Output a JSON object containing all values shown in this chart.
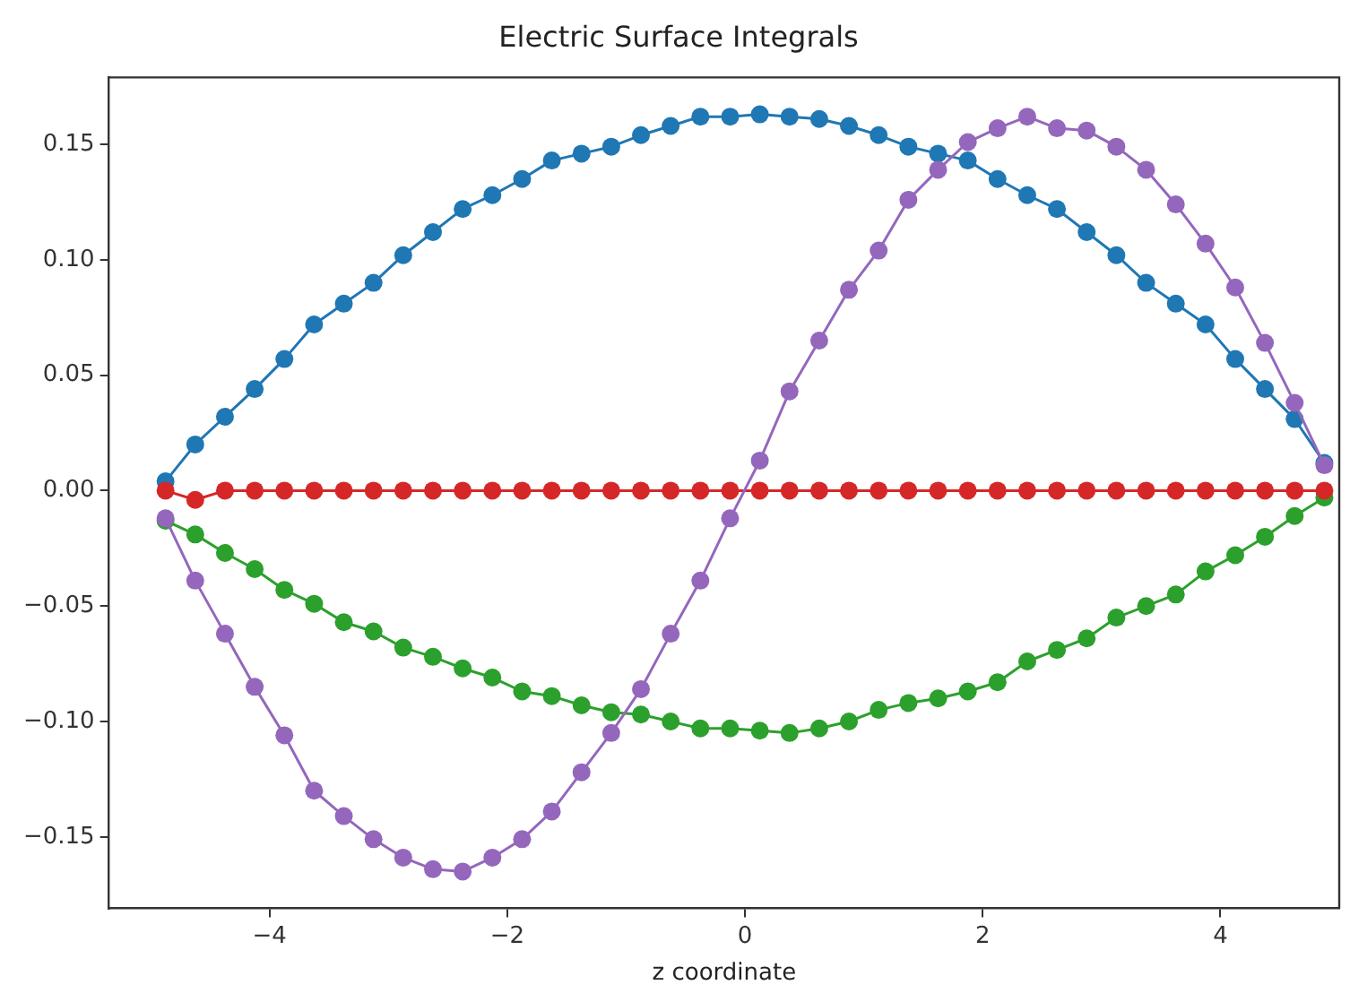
{
  "chart_data": {
    "type": "line",
    "title": "Electric Surface Integrals",
    "xlabel": "z coordinate",
    "x": [
      -4.875,
      -4.625,
      -4.375,
      -4.125,
      -3.875,
      -3.625,
      -3.375,
      -3.125,
      -2.875,
      -2.625,
      -2.375,
      -2.125,
      -1.875,
      -1.625,
      -1.375,
      -1.125,
      -0.875,
      -0.625,
      -0.375,
      -0.125,
      0.125,
      0.375,
      0.625,
      0.875,
      1.125,
      1.375,
      1.625,
      1.875,
      2.125,
      2.375,
      2.625,
      2.875,
      3.125,
      3.375,
      3.625,
      3.875,
      4.125,
      4.375,
      4.625,
      4.875
    ],
    "series": [
      {
        "color": "#1f77b4",
        "values": [
          0.004,
          0.02,
          0.032,
          0.044,
          0.057,
          0.072,
          0.081,
          0.09,
          0.102,
          0.112,
          0.122,
          0.128,
          0.135,
          0.143,
          0.146,
          0.149,
          0.154,
          0.158,
          0.162,
          0.162,
          0.163,
          0.162,
          0.161,
          0.158,
          0.154,
          0.149,
          0.146,
          0.143,
          0.135,
          0.128,
          0.122,
          0.112,
          0.102,
          0.09,
          0.081,
          0.072,
          0.057,
          0.044,
          0.031,
          0.012
        ]
      },
      {
        "color": "#2ca02c",
        "values": [
          -0.013,
          -0.019,
          -0.027,
          -0.034,
          -0.043,
          -0.049,
          -0.057,
          -0.061,
          -0.068,
          -0.072,
          -0.077,
          -0.081,
          -0.087,
          -0.089,
          -0.093,
          -0.096,
          -0.097,
          -0.1,
          -0.103,
          -0.103,
          -0.104,
          -0.105,
          -0.103,
          -0.1,
          -0.095,
          -0.092,
          -0.09,
          -0.087,
          -0.083,
          -0.074,
          -0.069,
          -0.064,
          -0.055,
          -0.05,
          -0.045,
          -0.035,
          -0.028,
          -0.02,
          -0.011,
          -0.003
        ]
      },
      {
        "color": "#d62728",
        "values": [
          0,
          -0.004,
          0,
          0,
          0,
          0,
          0,
          0,
          0,
          0,
          0,
          0,
          0,
          0,
          0,
          0,
          0,
          0,
          0,
          0,
          0,
          0,
          0,
          0,
          0,
          0,
          0,
          0,
          0,
          0,
          0,
          0,
          0,
          0,
          0,
          0,
          0,
          0,
          0,
          0
        ]
      },
      {
        "color": "#9467bd",
        "values": [
          -0.012,
          -0.039,
          -0.062,
          -0.085,
          -0.106,
          -0.13,
          -0.141,
          -0.151,
          -0.159,
          -0.164,
          -0.165,
          -0.159,
          -0.151,
          -0.139,
          -0.122,
          -0.105,
          -0.086,
          -0.062,
          -0.039,
          -0.012,
          0.013,
          0.043,
          0.065,
          0.087,
          0.104,
          0.126,
          0.139,
          0.151,
          0.157,
          0.162,
          0.157,
          0.156,
          0.149,
          0.139,
          0.124,
          0.107,
          0.088,
          0.064,
          0.038,
          0.011
        ]
      }
    ],
    "xlim": [
      -5.35,
      5.0
    ],
    "ylim": [
      -0.181,
      0.179
    ],
    "xticks": [
      {
        "value": -4,
        "label": "−4"
      },
      {
        "value": -2,
        "label": "−2"
      },
      0,
      2,
      4
    ],
    "yticks": [
      {
        "value": -0.15,
        "label": "−0.15"
      },
      {
        "value": -0.1,
        "label": "−0.10"
      },
      {
        "value": -0.05,
        "label": "−0.05"
      },
      {
        "value": 0,
        "label": "0.00"
      },
      {
        "value": 0.05,
        "label": "0.05"
      },
      {
        "value": 0.1,
        "label": "0.10"
      },
      {
        "value": 0.15,
        "label": "0.15"
      }
    ],
    "grid": false,
    "legend": false,
    "marker": "circle",
    "line_style": "solid"
  }
}
